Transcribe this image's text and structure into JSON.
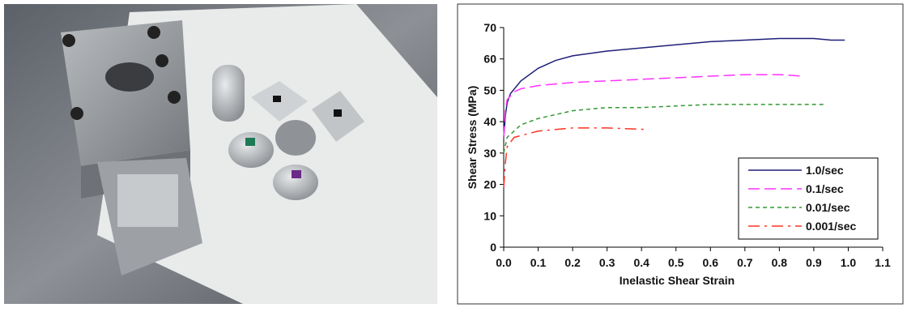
{
  "chart_data": {
    "type": "line",
    "xlabel": "Inelastic Shear Strain",
    "ylabel": "Shear Stress (MPa)",
    "xlim": [
      0,
      1.1
    ],
    "ylim": [
      0,
      70
    ],
    "xticks": [
      {
        "value": 0,
        "label": "0.0"
      },
      0.1,
      0.2,
      0.3,
      0.4,
      0.5,
      0.6,
      0.7,
      0.8,
      0.9,
      {
        "value": 1,
        "label": "1.0"
      },
      1.1
    ],
    "yticks": [
      0,
      10,
      20,
      30,
      40,
      50,
      60,
      70
    ],
    "legend": "lower right",
    "series": [
      {
        "name": "1.0/sec",
        "color": "#1f1f7a",
        "dash": "solid",
        "x": [
          0,
          0.005,
          0.01,
          0.02,
          0.05,
          0.1,
          0.15,
          0.2,
          0.3,
          0.4,
          0.5,
          0.6,
          0.7,
          0.8,
          0.9,
          0.95,
          0.99
        ],
        "values": [
          35,
          42,
          46,
          49,
          53,
          57,
          59.5,
          61,
          62.5,
          63.5,
          64.5,
          65.5,
          66,
          66.5,
          66.5,
          66,
          66
        ]
      },
      {
        "name": "0.1/sec",
        "color": "#ff33ff",
        "dash": "long",
        "x": [
          0,
          0.005,
          0.01,
          0.03,
          0.05,
          0.1,
          0.2,
          0.3,
          0.4,
          0.5,
          0.6,
          0.7,
          0.8,
          0.87
        ],
        "values": [
          35,
          44,
          47,
          49.5,
          50.5,
          51.5,
          52.5,
          53,
          53.5,
          54,
          54.5,
          55,
          55,
          54.5
        ]
      },
      {
        "name": "0.01/sec",
        "color": "#339933",
        "dash": "short",
        "x": [
          0,
          0.01,
          0.03,
          0.05,
          0.1,
          0.2,
          0.3,
          0.4,
          0.5,
          0.6,
          0.7,
          0.8,
          0.93
        ],
        "values": [
          30,
          35,
          37,
          39,
          41,
          43.5,
          44.5,
          44.5,
          45,
          45.5,
          45.5,
          45.5,
          45.5
        ]
      },
      {
        "name": "0.001/sec",
        "color": "#ff3322",
        "dash": "dashdot",
        "x": [
          0,
          0.005,
          0.01,
          0.03,
          0.1,
          0.2,
          0.3,
          0.42
        ],
        "values": [
          19,
          27,
          32,
          35,
          37,
          38,
          38,
          37.5
        ]
      }
    ]
  }
}
